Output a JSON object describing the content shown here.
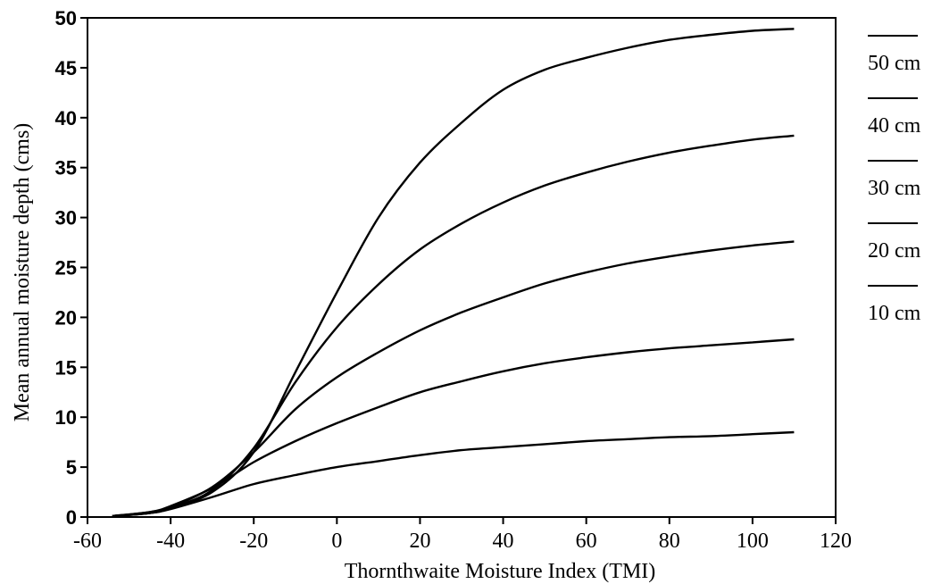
{
  "chart_data": {
    "type": "line",
    "title": "",
    "xlabel": "Thornthwaite Moisture Index (TMI)",
    "ylabel": "Mean annual moisture depth  (cms)",
    "xlim": [
      -60,
      120
    ],
    "ylim": [
      0,
      50
    ],
    "xticks": [
      "-60",
      "-40",
      "-20",
      "0",
      "20",
      "40",
      "60",
      "80",
      "100",
      "120"
    ],
    "yticks": [
      "0",
      "5",
      "10",
      "15",
      "20",
      "25",
      "30",
      "35",
      "40",
      "45",
      "50"
    ],
    "grid": false,
    "legend_position": "right, outside plot",
    "series": [
      {
        "name": "50 cm",
        "x": [
          -54,
          -45,
          -40,
          -30,
          -20,
          -10,
          0,
          10,
          20,
          30,
          40,
          50,
          60,
          70,
          80,
          90,
          100,
          110
        ],
        "y": [
          0.1,
          0.4,
          0.9,
          2.5,
          6.5,
          14.5,
          22.5,
          30.0,
          35.5,
          39.5,
          42.8,
          44.8,
          46.0,
          47.0,
          47.8,
          48.3,
          48.7,
          48.9
        ]
      },
      {
        "name": "40 cm",
        "x": [
          -54,
          -45,
          -40,
          -30,
          -20,
          -10,
          0,
          10,
          20,
          30,
          40,
          50,
          60,
          70,
          80,
          90,
          100,
          110
        ],
        "y": [
          0.1,
          0.4,
          0.9,
          2.7,
          6.9,
          13.5,
          19.0,
          23.3,
          26.8,
          29.4,
          31.5,
          33.2,
          34.5,
          35.6,
          36.5,
          37.2,
          37.8,
          38.2
        ]
      },
      {
        "name": "30 cm",
        "x": [
          -54,
          -45,
          -40,
          -30,
          -20,
          -10,
          0,
          10,
          20,
          30,
          40,
          50,
          60,
          70,
          80,
          90,
          100,
          110
        ],
        "y": [
          0.1,
          0.5,
          1.0,
          3.0,
          6.5,
          10.8,
          14.0,
          16.5,
          18.7,
          20.5,
          22.0,
          23.4,
          24.5,
          25.4,
          26.1,
          26.7,
          27.2,
          27.6
        ]
      },
      {
        "name": "20 cm",
        "x": [
          -54,
          -45,
          -40,
          -30,
          -20,
          -10,
          0,
          10,
          20,
          30,
          40,
          50,
          60,
          70,
          80,
          90,
          100,
          110
        ],
        "y": [
          0.1,
          0.5,
          1.1,
          2.9,
          5.5,
          7.6,
          9.4,
          11.0,
          12.5,
          13.6,
          14.6,
          15.4,
          16.0,
          16.5,
          16.9,
          17.2,
          17.5,
          17.8
        ]
      },
      {
        "name": "10 cm",
        "x": [
          -54,
          -45,
          -40,
          -30,
          -20,
          -10,
          0,
          10,
          20,
          30,
          40,
          50,
          60,
          70,
          80,
          90,
          100,
          110
        ],
        "y": [
          0.1,
          0.4,
          0.8,
          2.0,
          3.3,
          4.2,
          5.0,
          5.6,
          6.2,
          6.7,
          7.0,
          7.3,
          7.6,
          7.8,
          8.0,
          8.1,
          8.3,
          8.5
        ]
      }
    ]
  }
}
